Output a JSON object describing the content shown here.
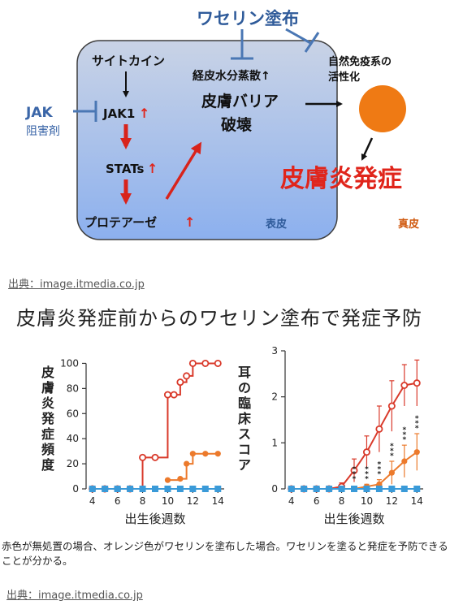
{
  "diagram": {
    "vaseline_label": "ワセリン塗布",
    "cytokine": "サイトカイン",
    "jak1": "JAK1",
    "stats": "STATs",
    "protease": "プロテアーゼ",
    "increase_arrow": "↑",
    "transepidermal": "経皮水分蒸散↑",
    "barrier_line1": "皮膚バリア",
    "barrier_line2": "破壊",
    "innate_line1": "自然免疫系の",
    "innate_line2": "活性化",
    "dermatitis": "皮膚炎発症",
    "jak_inhibitor_line1": "JAK",
    "jak_inhibitor_line2": "阻害剤",
    "epidermis": "表皮",
    "dermis": "真皮",
    "colors": {
      "box_top": "#c5d0e6",
      "box_bottom": "#8fb0ec",
      "inhibitor": "#4a77b4",
      "accent_red": "#e0251b",
      "circle": "#ef7a14",
      "dermis_text": "#d05a10"
    }
  },
  "source_top": "出典：image.itmedia.co.jp",
  "section_title": "皮膚炎発症前からのワセリン塗布で発症予防",
  "chart_data": [
    {
      "type": "line",
      "ylabel": "皮膚炎発症頻度",
      "xlabel": "出生後週数",
      "x_ticks": [
        4,
        6,
        8,
        10,
        12,
        14
      ],
      "y_ticks": [
        0,
        20,
        40,
        60,
        80,
        100
      ],
      "xlim": [
        3.5,
        14.5
      ],
      "ylim": [
        0,
        110
      ],
      "step": true,
      "series": [
        {
          "color": "#d93a2b",
          "marker": "open-circle",
          "x": [
            4,
            5,
            6,
            7,
            8,
            9,
            10,
            10.5,
            11,
            11.5,
            12,
            13,
            14
          ],
          "y": [
            0,
            0,
            0,
            0,
            25,
            25,
            75,
            75,
            85,
            90,
            100,
            100,
            100
          ]
        },
        {
          "color": "#ec7a2c",
          "marker": "filled-circle",
          "x": [
            10,
            11,
            11.5,
            12,
            13,
            14
          ],
          "y": [
            7,
            8,
            20,
            28,
            28,
            28
          ]
        },
        {
          "color": "#3a9ad8",
          "marker": "filled-square",
          "x": [
            4,
            5,
            6,
            7,
            8,
            9,
            10,
            11,
            12,
            13,
            14
          ],
          "y": [
            0,
            0,
            0,
            0,
            0,
            0,
            0,
            0,
            0,
            0,
            0
          ]
        }
      ]
    },
    {
      "type": "line",
      "ylabel": "耳の臨床スコア",
      "xlabel": "出生後週数",
      "x_ticks": [
        4,
        6,
        8,
        10,
        12,
        14
      ],
      "y_ticks": [
        0,
        1,
        2,
        3
      ],
      "xlim": [
        3.5,
        14.5
      ],
      "ylim": [
        0,
        3
      ],
      "significance_marker": "***",
      "significance_x": [
        9,
        10,
        11,
        12,
        13,
        14
      ],
      "series": [
        {
          "color": "#d93a2b",
          "marker": "open-circle",
          "x": [
            4,
            5,
            6,
            7,
            8,
            9,
            10,
            11,
            12,
            13,
            14
          ],
          "y": [
            0,
            0,
            0,
            0,
            0.05,
            0.4,
            0.8,
            1.3,
            1.8,
            2.25,
            2.3
          ],
          "err": [
            0,
            0,
            0,
            0,
            0.08,
            0.25,
            0.35,
            0.5,
            0.55,
            0.45,
            0.5
          ]
        },
        {
          "color": "#ec7a2c",
          "marker": "filled-circle",
          "x": [
            4,
            5,
            6,
            7,
            8,
            9,
            10,
            11,
            12,
            13,
            14
          ],
          "y": [
            0,
            0,
            0,
            0,
            0,
            0,
            0.05,
            0.1,
            0.35,
            0.6,
            0.8
          ],
          "err": [
            0,
            0,
            0,
            0,
            0,
            0,
            0.05,
            0.1,
            0.25,
            0.35,
            0.4
          ]
        },
        {
          "color": "#3a9ad8",
          "marker": "filled-square",
          "x": [
            4,
            5,
            6,
            7,
            8,
            9,
            10,
            11,
            12,
            13,
            14
          ],
          "y": [
            0,
            0,
            0,
            0,
            0,
            0,
            0,
            0,
            0,
            0,
            0
          ]
        }
      ]
    }
  ],
  "caption": "赤色が無処置の場合、オレンジ色がワセリンを塗布した場合。ワセリンを塗ると発症を予防できることが分かる。",
  "source_bottom": "出典：image.itmedia.co.jp"
}
